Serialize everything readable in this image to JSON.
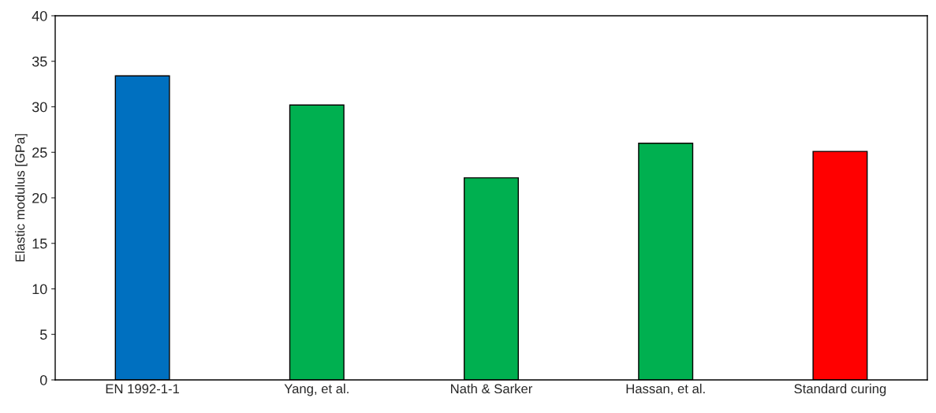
{
  "chart_data": {
    "type": "bar",
    "ylabel": "Elastic modulus [GPa]",
    "categories": [
      "EN 1992-1-1",
      "Yang, et al.",
      "Nath & Sarker",
      "Hassan, et al.",
      "Standard curing"
    ],
    "values": [
      33.4,
      30.2,
      22.2,
      26.0,
      25.1
    ],
    "colors": [
      "#0070c0",
      "#00b050",
      "#00b050",
      "#00b050",
      "#ff0000"
    ],
    "ylim": [
      0,
      40
    ],
    "yticks": [
      0,
      5,
      10,
      15,
      20,
      25,
      30,
      35,
      40
    ],
    "grid": false
  }
}
